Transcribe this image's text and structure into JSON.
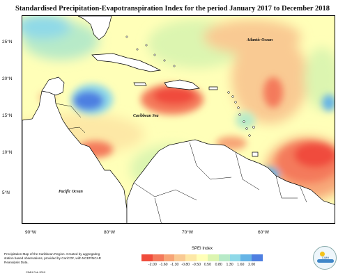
{
  "title": "Standardised Precipitation-Evapotranspiration Index for the period January 2017 to December 2018",
  "map": {
    "lat_labels": [
      "25°N",
      "20°N",
      "15°N",
      "10°N",
      "5°N"
    ],
    "lon_labels": [
      "90°W",
      "80°W",
      "70°W",
      "60°W"
    ],
    "sea_labels": {
      "atlantic": "Atlantic Ocean",
      "caribbean": "Caribbean Sea",
      "pacific": "Pacific Ocean"
    },
    "land_color": "#ffffff",
    "border_color": "#000000"
  },
  "legend": {
    "title": "SPEI Index",
    "ticks": [
      "-2.00",
      "-1.60",
      "-1.30",
      "-0.80",
      "-0.50",
      "0.50",
      "0.80",
      "1.30",
      "1.60",
      "2.00"
    ],
    "colors": [
      "#f04c3c",
      "#f47a5c",
      "#f7a577",
      "#f9ca93",
      "#fde8a6",
      "#ffffb8",
      "#dcf5b0",
      "#b7eac8",
      "#8fd9e8",
      "#65b4e6",
      "#4e7fe1"
    ]
  },
  "footnote": "Precipitation Map of the Caribbean Region. Created by aggregating station based observations, provided by CariCOF, with NCEP/NCAR Reanalysis Data.",
  "credit": "CIMH Feb 2019",
  "logo": {
    "text": "CIMH",
    "icon": "cimh-logo"
  }
}
